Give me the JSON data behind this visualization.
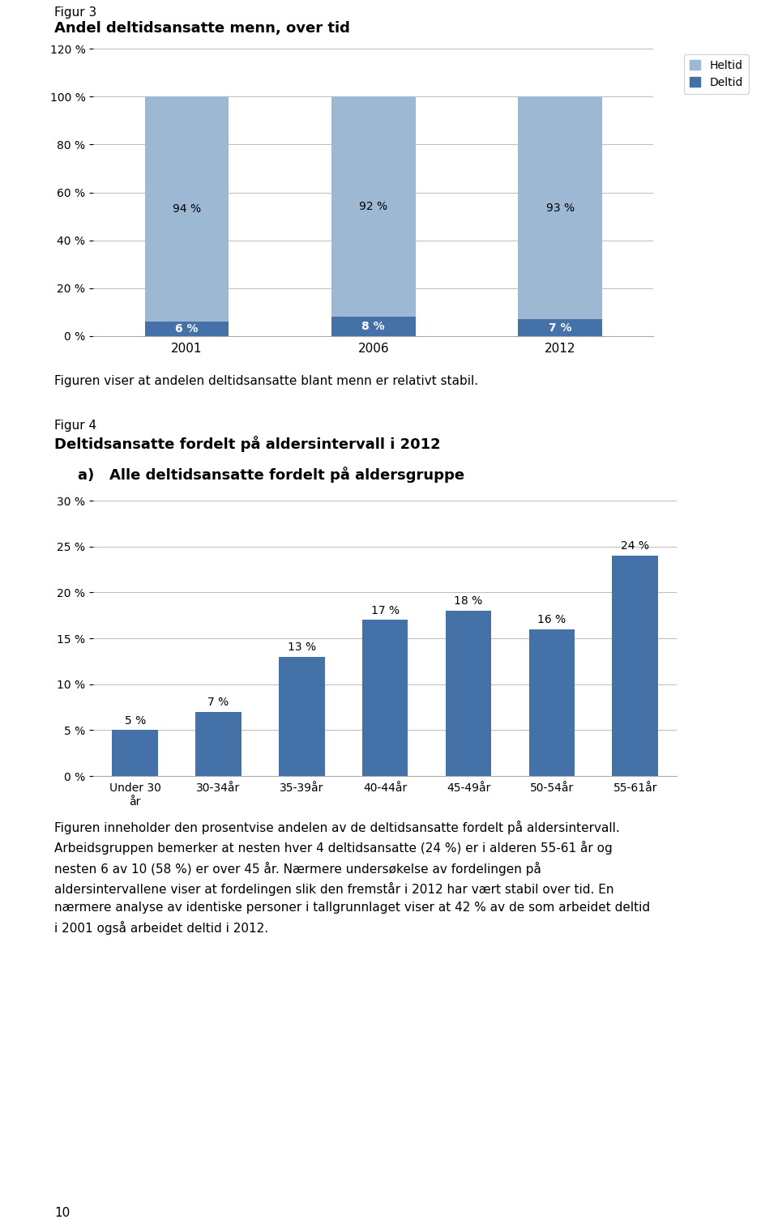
{
  "fig3_title_line1": "Figur 3",
  "fig3_title_line2": "Andel deltidsansatte menn, over tid",
  "fig3_categories": [
    "2001",
    "2006",
    "2012"
  ],
  "fig3_deltid": [
    6,
    8,
    7
  ],
  "fig3_heltid": [
    94,
    92,
    93
  ],
  "fig3_color_heltid": "#9db8d2",
  "fig3_color_deltid": "#4472a8",
  "fig3_ylim": [
    0,
    120
  ],
  "fig3_yticks": [
    0,
    20,
    40,
    60,
    80,
    100,
    120
  ],
  "fig3_legend_heltid": "Heltid",
  "fig3_legend_deltid": "Deltid",
  "fig3_caption": "Figuren viser at andelen deltidsansatte blant menn er relativt stabil.",
  "fig4_title_line1": "Figur 4",
  "fig4_title_line2": "Deltidsansatte fordelt på aldersintervall i 2012",
  "fig4_subtitle": "a)   Alle deltidsansatte fordelt på aldersgruppe",
  "fig4_categories": [
    "Under 30\når",
    "30-34år",
    "35-39år",
    "40-44år",
    "45-49år",
    "50-54år",
    "55-61år"
  ],
  "fig4_values": [
    5,
    7,
    13,
    17,
    18,
    16,
    24
  ],
  "fig4_color": "#4472a8",
  "fig4_ylim": [
    0,
    30
  ],
  "fig4_yticks": [
    0,
    5,
    10,
    15,
    20,
    25,
    30
  ],
  "fig4_caption": "Figuren inneholder den prosentvise andelen av de deltidsansatte fordelt på aldersintervall.\nArbeidsgruppen bemerker at nesten hver 4 deltidsansatte (24 %) er i alderen 55-61 år og\nnesten 6 av 10 (58 %) er over 45 år. Nærmere undersøkelse av fordelingen på\naldersintervallene viser at fordelingen slik den fremstår i 2012 har vært stabil over tid. En\nnærmere analyse av identiske personer i tallgrunnlaget viser at 42 % av de som arbeidet deltid\ni 2001 også arbeidet deltid i 2012.",
  "page_number": "10",
  "background_color": "#ffffff",
  "text_color": "#000000",
  "font_size_body": 11,
  "font_size_title": 13,
  "font_size_caption": 11
}
